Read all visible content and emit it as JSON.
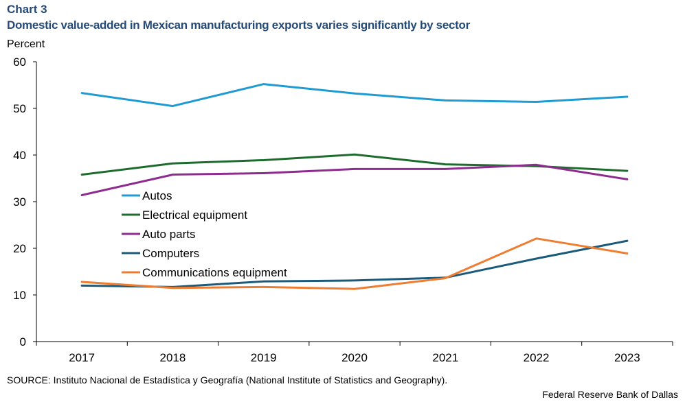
{
  "chart_label": "Chart 3",
  "chart_data": {
    "type": "line",
    "title": "Domestic value-added in Mexican manufacturing exports varies significantly by sector",
    "ylabel": "Percent",
    "xlabel": "",
    "categories": [
      "2017",
      "2018",
      "2019",
      "2020",
      "2021",
      "2022",
      "2023"
    ],
    "ylim": [
      0,
      60
    ],
    "yticks": [
      0,
      10,
      20,
      30,
      40,
      50,
      60
    ],
    "grid": false,
    "legend_position": "center-left",
    "series": [
      {
        "name": "Autos",
        "color": "#1f9bd1",
        "values": [
          53.3,
          50.5,
          55.2,
          53.2,
          51.7,
          51.4,
          52.5
        ]
      },
      {
        "name": "Electrical equipment",
        "color": "#1e6b2e",
        "values": [
          35.8,
          38.2,
          38.9,
          40.1,
          38.0,
          37.6,
          36.6
        ]
      },
      {
        "name": "Auto parts",
        "color": "#8e2b8f",
        "values": [
          31.4,
          35.8,
          36.1,
          37.0,
          37.0,
          37.9,
          34.8
        ]
      },
      {
        "name": "Computers",
        "color": "#1b5a7a",
        "values": [
          12.0,
          11.7,
          12.9,
          13.1,
          13.7,
          17.8,
          21.6
        ]
      },
      {
        "name": "Communications equipment",
        "color": "#ee7d31",
        "values": [
          12.8,
          11.5,
          11.7,
          11.3,
          13.6,
          22.1,
          18.9
        ]
      }
    ]
  },
  "source": "SOURCE: Instituto  Nacional de Estadística y Geografía  (National Institute  of Statistics and Geography).",
  "credit": "Federal Reserve Bank of Dallas"
}
